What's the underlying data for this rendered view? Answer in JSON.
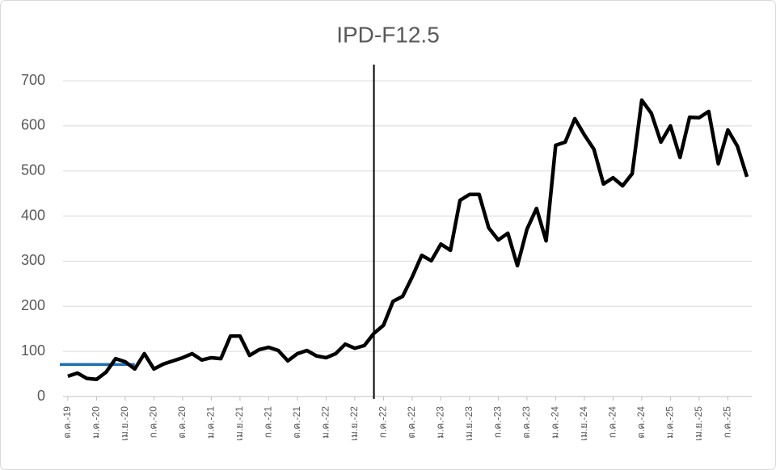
{
  "chart_data": {
    "type": "line",
    "title": "IPD-F12.5",
    "categories": [
      "ต.ค.-19",
      null,
      null,
      "ม.ค.-20",
      null,
      null,
      "เม.ย.-20",
      null,
      null,
      "ก.ค.-20",
      null,
      null,
      "ต.ค.-20",
      null,
      null,
      "ม.ค.-21",
      null,
      null,
      "เม.ย.-21",
      null,
      null,
      "ก.ค.-21",
      null,
      null,
      "ต.ค.-21",
      null,
      null,
      "ม.ค.-22",
      null,
      null,
      "เม.ย.-22",
      null,
      null,
      "ก.ค.-22",
      null,
      null,
      "ต.ค.-22",
      null,
      null,
      "ม.ค.-23",
      null,
      null,
      "เม.ย.-23",
      null,
      null,
      "ก.ค.-23",
      null,
      null,
      "ต.ค.-23",
      null,
      null,
      "ม.ค.-24",
      null,
      null,
      "เม.ย.-24",
      null,
      null,
      "ก.ค.-24",
      null,
      null,
      "ต.ค.-24",
      null,
      null,
      "ม.ค.-25",
      null,
      null,
      "เม.ย.-25",
      null,
      null,
      "ก.ค.-25",
      null,
      null
    ],
    "values": [
      45,
      52,
      40,
      38,
      54,
      84,
      77,
      61,
      95,
      61,
      72,
      79,
      86,
      95,
      81,
      86,
      84,
      134,
      134,
      91,
      104,
      109,
      102,
      79,
      95,
      102,
      90,
      86,
      95,
      116,
      107,
      113,
      140,
      158,
      211,
      222,
      265,
      313,
      301,
      338,
      324,
      435,
      448,
      448,
      374,
      347,
      362,
      290,
      371,
      417,
      345,
      557,
      564,
      616,
      580,
      548,
      471,
      485,
      467,
      494,
      657,
      628,
      564,
      600,
      530,
      619,
      618,
      632,
      516,
      591,
      555,
      487
    ],
    "color": "#000000",
    "ylim": [
      0,
      700
    ],
    "yticks": [
      0,
      100,
      200,
      300,
      400,
      500,
      600,
      700
    ],
    "grid": true,
    "reference_line": {
      "value": 71,
      "color": "#1f6db1"
    },
    "vline_category_index": 32
  }
}
